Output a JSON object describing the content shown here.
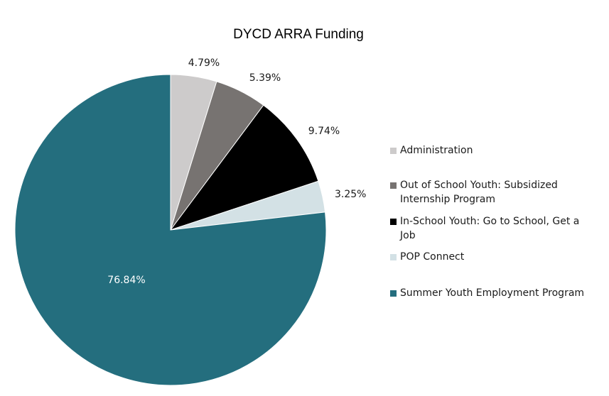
{
  "chart_data": {
    "type": "pie",
    "title": "DYCD ARRA Funding",
    "slices": [
      {
        "name": "Administration",
        "value": 4.79,
        "label": "4.79%",
        "color": "#cdcbcb"
      },
      {
        "name": "Out of School Youth: Subsidized Internship Program",
        "value": 5.39,
        "label": "5.39%",
        "color": "#777371"
      },
      {
        "name": "In-School Youth: Go to School, Get a Job",
        "value": 9.74,
        "label": "9.74%",
        "color": "#000000"
      },
      {
        "name": "POP Connect",
        "value": 3.25,
        "label": "3.25%",
        "color": "#d3e1e5"
      },
      {
        "name": "Summer Youth Employment Program",
        "value": 76.84,
        "label": "76.84%",
        "color": "#246e7e"
      }
    ],
    "legend_position": "right"
  }
}
